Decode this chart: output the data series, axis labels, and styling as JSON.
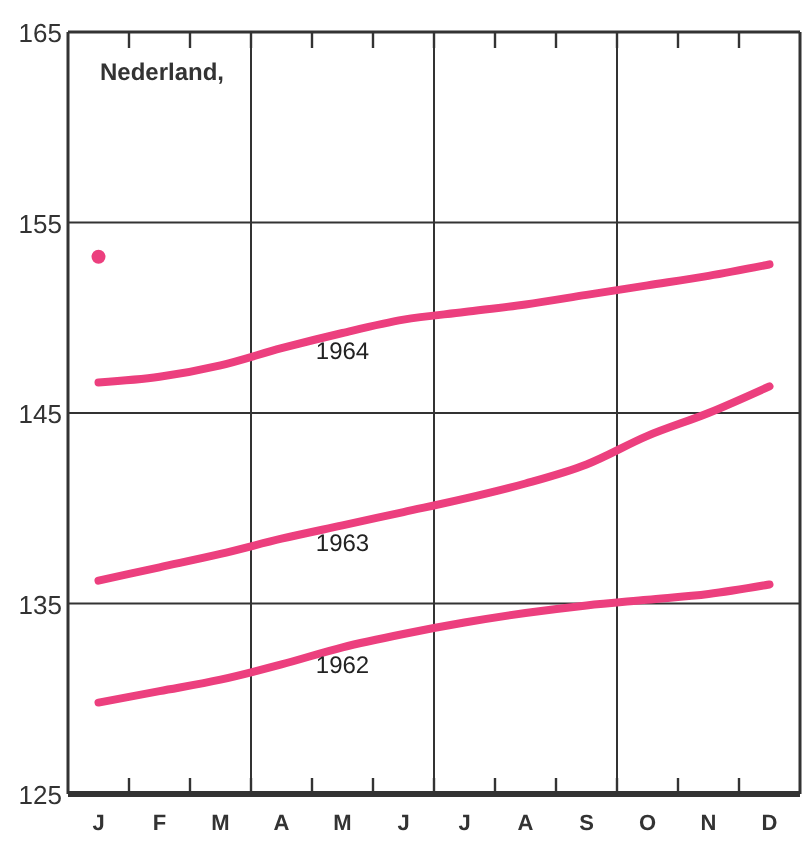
{
  "chart_data": {
    "type": "line",
    "title": "Nederland,",
    "categories": [
      "J",
      "F",
      "M",
      "A",
      "M",
      "J",
      "J",
      "A",
      "S",
      "O",
      "N",
      "D"
    ],
    "ylim": [
      125,
      165
    ],
    "yticks": [
      125,
      135,
      145,
      155,
      165
    ],
    "grid": true,
    "line_style": "solid",
    "series": [
      {
        "name": "1964",
        "color": "#ec3f7e",
        "values": [
          146.6,
          146.9,
          147.5,
          148.4,
          149.2,
          149.9,
          150.3,
          150.7,
          151.2,
          151.7,
          152.2,
          152.8
        ]
      },
      {
        "name": "1963",
        "color": "#ec3f7e",
        "values": [
          136.2,
          136.9,
          137.6,
          138.4,
          139.1,
          139.8,
          140.5,
          141.3,
          142.3,
          143.8,
          145.0,
          146.4
        ]
      },
      {
        "name": "1962",
        "color": "#ec3f7e",
        "values": [
          129.8,
          130.4,
          131.0,
          131.8,
          132.7,
          133.4,
          134.0,
          134.5,
          134.9,
          135.2,
          135.5,
          136.0
        ]
      },
      {
        "type": "scatter",
        "color": "#ec3f7e",
        "values": [
          153.2,
          null,
          null,
          null,
          null,
          null,
          null,
          null,
          null,
          null,
          null,
          null
        ]
      }
    ]
  }
}
